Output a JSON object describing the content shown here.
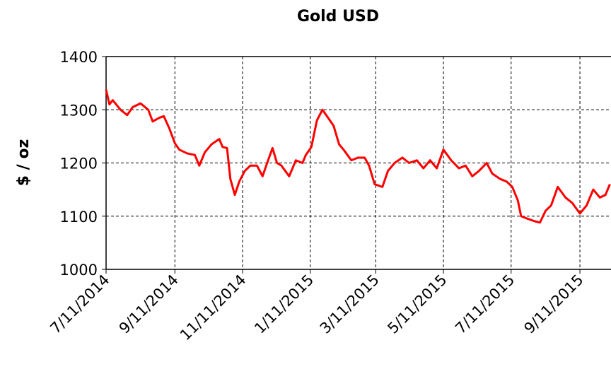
{
  "chart_data": {
    "type": "line",
    "title": "Gold USD",
    "y_label": "$ / oz",
    "x": [
      "7/11/2014",
      "7/14/2014",
      "7/17/2014",
      "7/24/2014",
      "7/30/2014",
      "8/4/2014",
      "8/11/2014",
      "8/18/2014",
      "8/22/2014",
      "8/28/2014",
      "9/1/2014",
      "9/6/2014",
      "9/11/2014",
      "9/15/2014",
      "9/22/2014",
      "9/29/2014",
      "10/3/2014",
      "10/8/2014",
      "10/14/2014",
      "10/21/2014",
      "10/24/2014",
      "10/28/2014",
      "10/31/2014",
      "11/4/2014",
      "11/8/2014",
      "11/13/2014",
      "11/18/2014",
      "11/24/2014",
      "11/29/2014",
      "12/4/2014",
      "12/8/2014",
      "12/12/2014",
      "12/16/2014",
      "12/23/2014",
      "12/29/2014",
      "1/4/2015",
      "1/7/2015",
      "1/12/2015",
      "1/17/2015",
      "1/22/2015",
      "1/27/2015",
      "2/1/2015",
      "2/6/2015",
      "2/10/2015",
      "2/17/2015",
      "2/23/2015",
      "3/1/2015",
      "3/5/2015",
      "3/10/2015",
      "3/17/2015",
      "3/22/2015",
      "3/28/2015",
      "4/4/2015",
      "4/10/2015",
      "4/17/2015",
      "4/23/2015",
      "4/29/2015",
      "5/5/2015",
      "5/11/2015",
      "5/18/2015",
      "5/25/2015",
      "5/31/2015",
      "6/6/2015",
      "6/12/2015",
      "6/19/2015",
      "6/24/2015",
      "7/1/2015",
      "7/7/2015",
      "7/12/2015",
      "7/17/2015",
      "7/20/2015",
      "7/26/2015",
      "8/2/2015",
      "8/6/2015",
      "8/11/2015",
      "8/16/2015",
      "8/22/2015",
      "8/29/2015",
      "9/4/2015",
      "9/11/2015",
      "9/17/2015",
      "9/23/2015",
      "9/29/2015",
      "10/4/2015",
      "10/8/2015"
    ],
    "series": [
      {
        "name": "Gold USD",
        "color": "#ff0000",
        "values": [
          1338,
          1310,
          1318,
          1300,
          1290,
          1305,
          1312,
          1300,
          1278,
          1285,
          1288,
          1265,
          1237,
          1225,
          1218,
          1215,
          1195,
          1220,
          1235,
          1245,
          1230,
          1228,
          1170,
          1140,
          1165,
          1185,
          1195,
          1195,
          1175,
          1205,
          1228,
          1200,
          1195,
          1175,
          1205,
          1200,
          1215,
          1230,
          1280,
          1300,
          1285,
          1270,
          1235,
          1225,
          1205,
          1210,
          1210,
          1195,
          1160,
          1155,
          1185,
          1200,
          1210,
          1200,
          1205,
          1190,
          1205,
          1190,
          1225,
          1205,
          1190,
          1195,
          1175,
          1185,
          1200,
          1180,
          1170,
          1165,
          1155,
          1130,
          1100,
          1095,
          1090,
          1088,
          1110,
          1120,
          1155,
          1135,
          1125,
          1105,
          1120,
          1150,
          1135,
          1140,
          1160
        ]
      }
    ],
    "xlim": [
      "7/11/2014",
      "10/9/2015"
    ],
    "xticks": [
      "7/11/2014",
      "9/11/2014",
      "11/11/2014",
      "1/11/2015",
      "3/11/2015",
      "5/11/2015",
      "7/11/2015",
      "9/11/2015"
    ],
    "ylim": [
      1000,
      1400
    ],
    "yticks": [
      1000,
      1100,
      1200,
      1300,
      1400
    ],
    "grid": true
  }
}
